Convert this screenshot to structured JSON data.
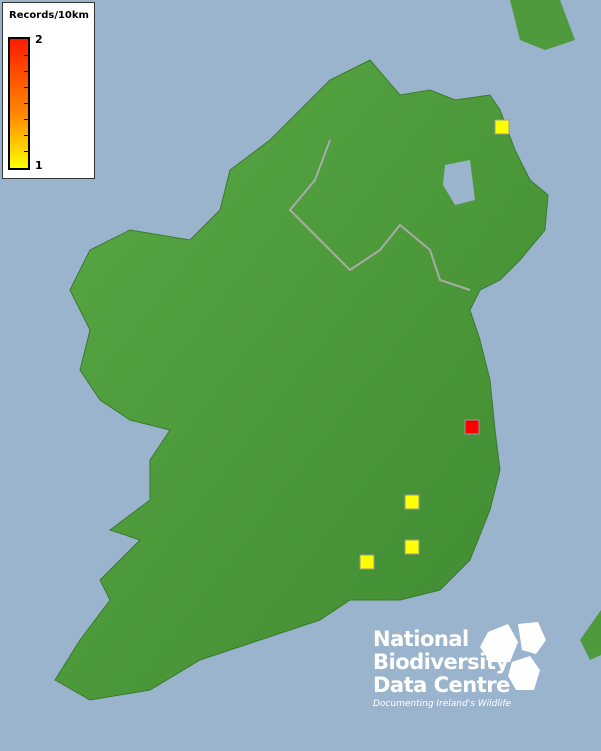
{
  "legend": {
    "title": "Records/10km",
    "max_label": "2",
    "min_label": "1",
    "colors": {
      "max": "#ff0000",
      "min": "#ffff00"
    }
  },
  "records": [
    {
      "label": "1",
      "color": "#ffff00",
      "grid": "north-east Antrim"
    },
    {
      "label": "2",
      "color": "#ff0000",
      "grid": "Wicklow"
    },
    {
      "label": "1",
      "color": "#ffff00",
      "grid": "Carlow"
    },
    {
      "label": "1",
      "color": "#ffff00",
      "grid": "Kilkenny south"
    },
    {
      "label": "1",
      "color": "#ffff00",
      "grid": "Tipperary south"
    }
  ],
  "logo": {
    "line1": "National",
    "line2": "Biodiversity",
    "line3": "Data Centre",
    "tagline": "Documenting Ireland's Wildlife"
  },
  "colors": {
    "sea": "#9bb4cd",
    "land": "#4f9a3c"
  }
}
